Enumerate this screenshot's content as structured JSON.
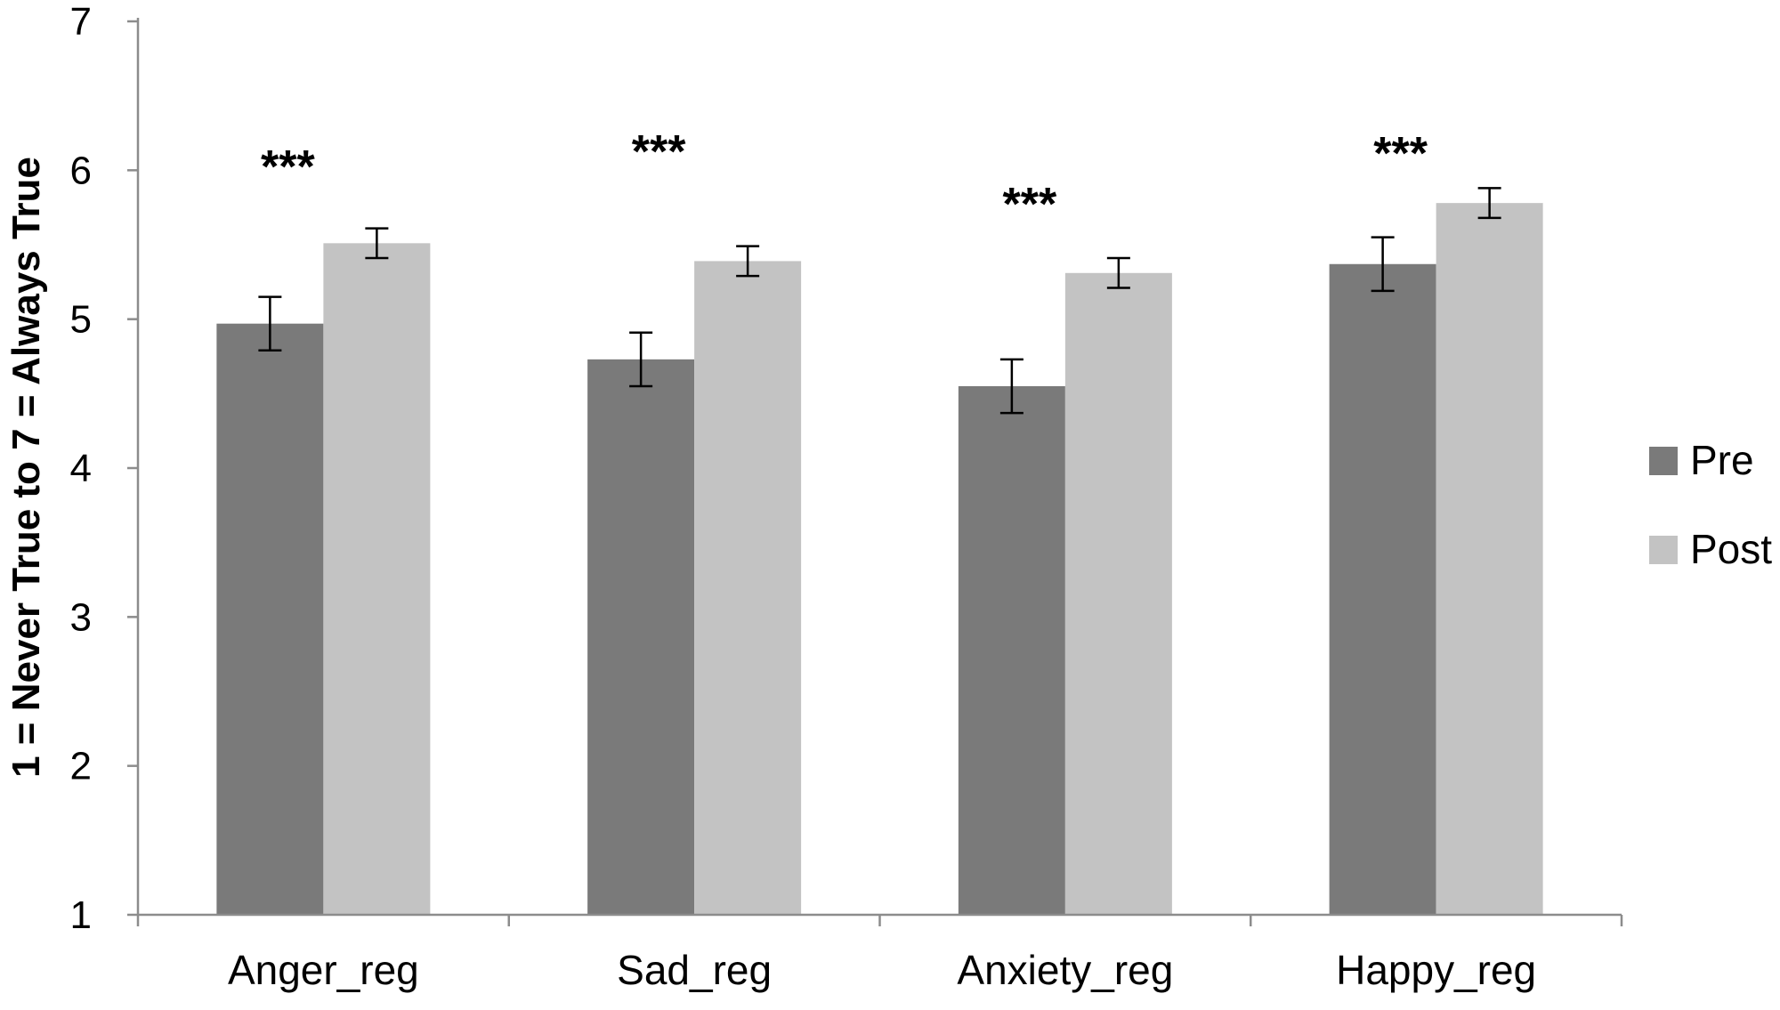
{
  "chart_data": {
    "type": "bar",
    "title": "",
    "xlabel": "",
    "ylabel": "1 = Never True to 7 = Always True",
    "ylim": [
      1,
      7
    ],
    "yticks": [
      "1",
      "2",
      "3",
      "4",
      "5",
      "6",
      "7"
    ],
    "grid": false,
    "legend_position": "right",
    "categories": [
      "Anger_reg",
      "Sad_reg",
      "Anxiety_reg",
      "Happy_reg"
    ],
    "series": [
      {
        "name": "Pre",
        "color": "#7a7a7a",
        "values": [
          4.97,
          4.73,
          4.55,
          5.37
        ],
        "errors": [
          0.18,
          0.18,
          0.18,
          0.18
        ]
      },
      {
        "name": "Post",
        "color": "#c3c3c3",
        "values": [
          5.51,
          5.39,
          5.31,
          5.78
        ],
        "errors": [
          0.1,
          0.1,
          0.1,
          0.1
        ]
      }
    ],
    "annotations": [
      {
        "category": "Anger_reg",
        "text": "***",
        "y": 6.05
      },
      {
        "category": "Sad_reg",
        "text": "***",
        "y": 6.15
      },
      {
        "category": "Anxiety_reg",
        "text": "***",
        "y": 5.8
      },
      {
        "category": "Happy_reg",
        "text": "***",
        "y": 6.14
      }
    ]
  }
}
